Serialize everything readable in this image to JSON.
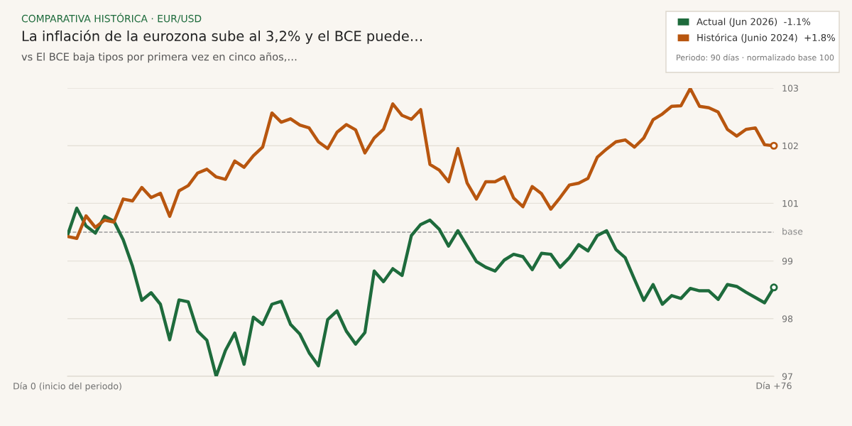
{
  "chart_data": {
    "type": "line",
    "annotations": [
      "COMPARATIVA HISTÓRICA · EUR/USD",
      "Periodo: 90 días · normalizado base 100"
    ],
    "title": "La inflación de la eurozona sube al 3,2% y el BCE puede…",
    "subtitle": "vs El BCE baja tipos por primera vez en cinco años,…",
    "categories": [
      "Día 0 (inicio del periodo)",
      null,
      null,
      null,
      null,
      null,
      null,
      null,
      null,
      null,
      null,
      null,
      null,
      null,
      null,
      null,
      null,
      null,
      null,
      null,
      null,
      null,
      null,
      null,
      null,
      null,
      null,
      null,
      null,
      null,
      null,
      null,
      null,
      null,
      null,
      null,
      null,
      null,
      null,
      null,
      null,
      null,
      null,
      null,
      null,
      null,
      null,
      null,
      null,
      null,
      null,
      null,
      null,
      null,
      null,
      null,
      null,
      null,
      null,
      null,
      null,
      null,
      null,
      null,
      null,
      null,
      null,
      null,
      null,
      null,
      null,
      null,
      null,
      null,
      null,
      null,
      "Día +76"
    ],
    "series": [
      {
        "name": "Actual (Jun 2026)  -1.1%",
        "color": "#1e6b3c",
        "values": [
          99.93,
          100.5,
          100.13,
          99.98,
          100.33,
          100.23,
          99.84,
          99.29,
          98.58,
          98.74,
          98.5,
          97.76,
          98.59,
          98.55,
          97.94,
          97.75,
          97.0,
          97.54,
          97.9,
          97.25,
          98.23,
          98.08,
          98.5,
          98.56,
          98.08,
          97.88,
          97.49,
          97.22,
          98.18,
          98.36,
          97.94,
          97.67,
          97.91,
          99.19,
          98.97,
          99.24,
          99.1,
          99.93,
          100.16,
          100.25,
          100.06,
          99.71,
          100.03,
          99.71,
          99.39,
          99.27,
          99.19,
          99.42,
          99.54,
          99.49,
          99.22,
          99.56,
          99.54,
          99.27,
          99.47,
          99.74,
          99.61,
          99.93,
          100.03,
          99.64,
          99.47,
          99.02,
          98.58,
          98.91,
          98.5,
          98.68,
          98.62,
          98.83,
          98.78,
          98.78,
          98.6,
          98.91,
          98.87,
          98.75,
          98.64,
          98.53,
          98.85
        ]
      },
      {
        "name": "Histórica (Junio 2024)  +1.8%",
        "color": "#b8560f",
        "values": [
          99.91,
          99.87,
          100.34,
          100.1,
          100.25,
          100.21,
          100.69,
          100.65,
          100.93,
          100.72,
          100.81,
          100.33,
          100.86,
          100.97,
          101.23,
          101.31,
          101.15,
          101.1,
          101.48,
          101.35,
          101.59,
          101.77,
          102.48,
          102.29,
          102.36,
          102.23,
          102.17,
          101.88,
          101.74,
          102.08,
          102.24,
          102.13,
          101.65,
          101.96,
          102.14,
          102.67,
          102.43,
          102.35,
          102.55,
          101.41,
          101.29,
          101.05,
          101.74,
          101.02,
          100.69,
          101.05,
          101.05,
          101.15,
          100.71,
          100.53,
          100.95,
          100.8,
          100.48,
          100.72,
          100.98,
          101.02,
          101.12,
          101.56,
          101.73,
          101.88,
          101.92,
          101.77,
          101.96,
          102.34,
          102.46,
          102.62,
          102.63,
          102.99,
          102.62,
          102.59,
          102.5,
          102.14,
          102.0,
          102.14,
          102.17,
          101.82,
          101.8
        ]
      }
    ],
    "ylim": [
      97,
      103
    ],
    "yticks": [
      97,
      {
        "value": 98.2,
        "label": "98"
      },
      {
        "value": 99.4,
        "label": "99"
      },
      {
        "value": 100.6,
        "label": "101"
      },
      {
        "value": 101.8,
        "label": "102"
      },
      103
    ],
    "ref_lines": [
      {
        "axis": "y",
        "value": 100,
        "label": "base",
        "color": "#9a9a9a",
        "line_style": "dashed"
      }
    ],
    "grid": "y",
    "legend": "top right",
    "line_style": "solid",
    "marker": "none"
  }
}
